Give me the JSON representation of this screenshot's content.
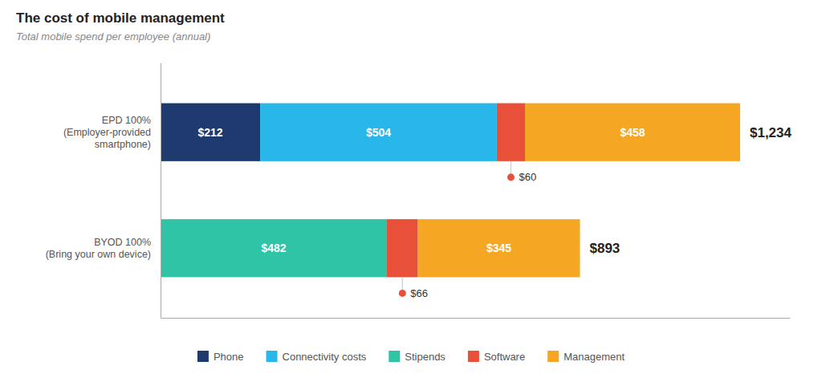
{
  "chart_data": {
    "type": "bar",
    "orientation": "horizontal",
    "stacked": true,
    "title": "The cost of mobile management",
    "subtitle": "Total mobile spend per employee (annual)",
    "categories": [
      "EPD 100%\n(Employer-provided\nsmartphone)",
      "BYOD 100%\n(Bring your own device)"
    ],
    "series": [
      {
        "name": "Phone",
        "color": "#1e3a6e",
        "values": [
          212,
          0
        ],
        "value_labels": [
          "$212",
          null
        ]
      },
      {
        "name": "Connectivity costs",
        "color": "#29b6e8",
        "values": [
          504,
          0
        ],
        "value_labels": [
          "$504",
          null
        ]
      },
      {
        "name": "Stipends",
        "color": "#2ec4a5",
        "values": [
          0,
          482
        ],
        "value_labels": [
          null,
          "$482"
        ]
      },
      {
        "name": "Software",
        "color": "#e8503a",
        "values": [
          60,
          66
        ],
        "value_labels": [
          "$60",
          "$66"
        ]
      },
      {
        "name": "Management",
        "color": "#f5a623",
        "values": [
          458,
          345
        ],
        "value_labels": [
          "$458",
          "$345"
        ]
      }
    ],
    "totals": [
      1234,
      893
    ],
    "total_labels": [
      "$1,234",
      "$893"
    ],
    "xlim": [
      0,
      1340
    ],
    "tick_labels": "y",
    "data_labels": true,
    "grid": false,
    "legend": "bottom"
  }
}
